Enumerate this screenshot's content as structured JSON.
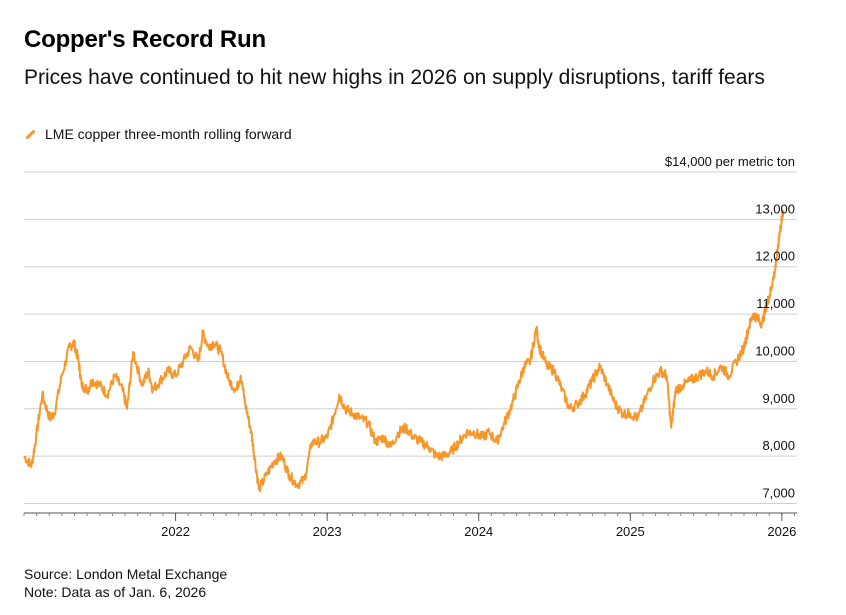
{
  "header": {
    "title": "Copper's Record Run",
    "subtitle": "Prices have continued to hit new highs in 2026 on supply disruptions, tariff fears"
  },
  "legend": {
    "label": "LME copper three-month rolling forward",
    "color": "#f7972b"
  },
  "footer": {
    "source": "Source: London Metal Exchange",
    "note": "Note: Data as of Jan. 6, 2026"
  },
  "chart_data": {
    "type": "line",
    "title": "Copper's Record Run",
    "ylabel": "$14,000 per metric ton",
    "xlim": [
      2021.0,
      2026.1
    ],
    "ylim": [
      6800,
      14000
    ],
    "x_ticks": [
      2022,
      2023,
      2024,
      2025,
      2026
    ],
    "x_tick_labels": [
      "2022",
      "2023",
      "2024",
      "2025",
      "2026"
    ],
    "y_ticks": [
      7000,
      8000,
      9000,
      10000,
      11000,
      12000,
      13000,
      14000
    ],
    "y_tick_labels": [
      "7,000",
      "8,000",
      "9,000",
      "10,000",
      "11,000",
      "12,000",
      "13,000",
      "$14,000 per metric ton"
    ],
    "grid": true,
    "series": [
      {
        "name": "LME copper three-month rolling forward",
        "color": "#f7972b",
        "x": [
          2021.0,
          2021.05,
          2021.08,
          2021.12,
          2021.17,
          2021.2,
          2021.25,
          2021.3,
          2021.33,
          2021.36,
          2021.38,
          2021.42,
          2021.45,
          2021.5,
          2021.55,
          2021.6,
          2021.65,
          2021.68,
          2021.72,
          2021.78,
          2021.82,
          2021.85,
          2021.9,
          2021.95,
          2022.0,
          2022.05,
          2022.1,
          2022.15,
          2022.18,
          2022.22,
          2022.25,
          2022.3,
          2022.35,
          2022.4,
          2022.43,
          2022.46,
          2022.5,
          2022.52,
          2022.55,
          2022.6,
          2022.65,
          2022.7,
          2022.75,
          2022.8,
          2022.85,
          2022.9,
          2022.95,
          2023.0,
          2023.04,
          2023.08,
          2023.12,
          2023.17,
          2023.22,
          2023.27,
          2023.32,
          2023.37,
          2023.42,
          2023.47,
          2023.52,
          2023.57,
          2023.62,
          2023.67,
          2023.72,
          2023.77,
          2023.82,
          2023.87,
          2023.92,
          2023.97,
          2024.02,
          2024.07,
          2024.12,
          2024.17,
          2024.22,
          2024.26,
          2024.3,
          2024.34,
          2024.38,
          2024.4,
          2024.45,
          2024.5,
          2024.55,
          2024.6,
          2024.65,
          2024.7,
          2024.75,
          2024.8,
          2024.85,
          2024.9,
          2024.95,
          2025.0,
          2025.05,
          2025.1,
          2025.15,
          2025.2,
          2025.24,
          2025.27,
          2025.3,
          2025.35,
          2025.4,
          2025.45,
          2025.5,
          2025.55,
          2025.6,
          2025.65,
          2025.7,
          2025.75,
          2025.78,
          2025.81,
          2025.84,
          2025.87,
          2025.9,
          2025.92,
          2025.94,
          2025.96,
          2025.98,
          2026.0,
          2026.01
        ],
        "y": [
          8000,
          7800,
          8400,
          9300,
          8800,
          8900,
          9700,
          10300,
          10400,
          10000,
          9500,
          9400,
          9600,
          9500,
          9300,
          9700,
          9400,
          9000,
          10200,
          9500,
          9800,
          9400,
          9600,
          9800,
          9700,
          10000,
          10300,
          10000,
          10600,
          10300,
          10400,
          10200,
          9600,
          9400,
          9700,
          9100,
          8500,
          8000,
          7300,
          7600,
          7900,
          8000,
          7600,
          7400,
          7500,
          8300,
          8300,
          8400,
          8800,
          9300,
          9000,
          8900,
          8800,
          8700,
          8300,
          8400,
          8200,
          8500,
          8600,
          8400,
          8300,
          8200,
          8000,
          8000,
          8100,
          8300,
          8500,
          8500,
          8400,
          8500,
          8300,
          8700,
          9100,
          9500,
          9900,
          10000,
          10700,
          10300,
          9900,
          9800,
          9400,
          9000,
          9100,
          9300,
          9600,
          9900,
          9500,
          9100,
          8900,
          8900,
          8800,
          9200,
          9600,
          9800,
          9700,
          8600,
          9400,
          9500,
          9600,
          9700,
          9800,
          9700,
          9900,
          9700,
          10000,
          10300,
          10700,
          11000,
          10900,
          10800,
          11200,
          11400,
          11700,
          12000,
          12600,
          13000,
          13200
        ]
      }
    ]
  }
}
